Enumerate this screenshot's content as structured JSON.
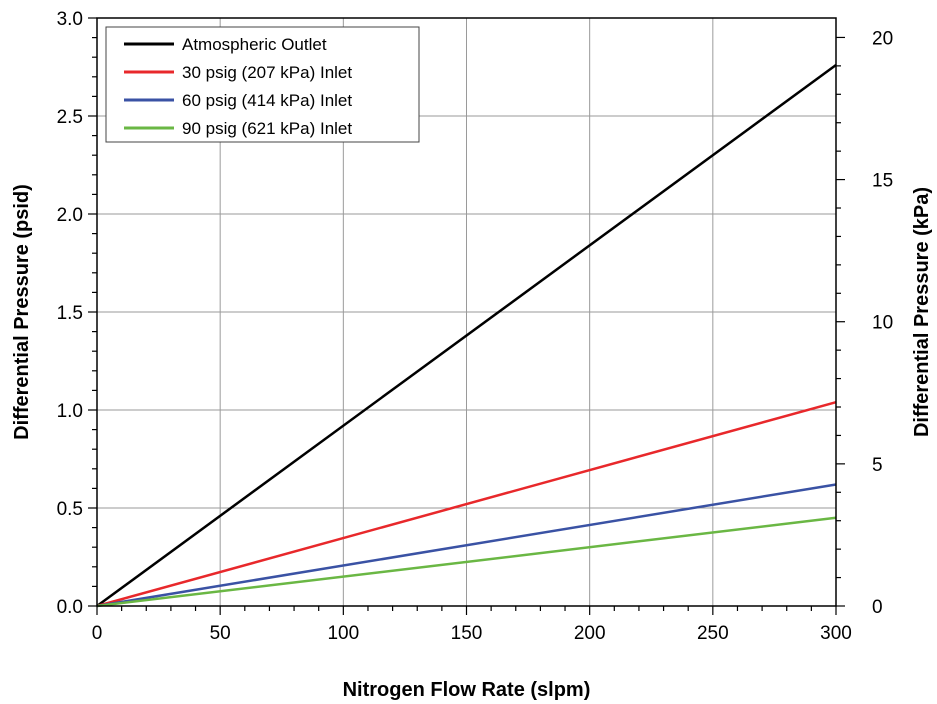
{
  "chart_data": {
    "type": "line",
    "xlabel": "Nitrogen Flow Rate (slpm)",
    "ylabel": "Differential Pressure (psid)",
    "y2label": "Differential Pressure (kPa)",
    "xlim": [
      0,
      300
    ],
    "ylim": [
      0,
      3.0
    ],
    "y2lim": [
      0,
      20.684
    ],
    "grid": true,
    "legend_position": "top-left",
    "x_ticks": [
      "0",
      "50",
      "100",
      "150",
      "200",
      "250",
      "300"
    ],
    "x_tick_values": [
      0,
      50,
      100,
      150,
      200,
      250,
      300
    ],
    "y_ticks": [
      "0.0",
      "0.5",
      "1.0",
      "1.5",
      "2.0",
      "2.5",
      "3.0"
    ],
    "y_tick_values": [
      0,
      0.5,
      1.0,
      1.5,
      2.0,
      2.5,
      3.0
    ],
    "y2_ticks": [
      "0",
      "5",
      "10",
      "15",
      "20"
    ],
    "y2_tick_values": [
      0,
      5,
      10,
      15,
      20
    ],
    "series": [
      {
        "name": "Atmospheric Outlet",
        "color": "#000000",
        "x": [
          0,
          300
        ],
        "y": [
          0,
          2.76
        ]
      },
      {
        "name": "30 psig (207 kPa) Inlet",
        "color": "#e8282b",
        "x": [
          0,
          300
        ],
        "y": [
          0,
          1.04
        ]
      },
      {
        "name": "60 psig (414 kPa) Inlet",
        "color": "#3a52a4",
        "x": [
          0,
          300
        ],
        "y": [
          0,
          0.62
        ]
      },
      {
        "name": "90 psig (621 kPa) Inlet",
        "color": "#6ab744",
        "x": [
          0,
          300
        ],
        "y": [
          0,
          0.45
        ]
      }
    ]
  }
}
